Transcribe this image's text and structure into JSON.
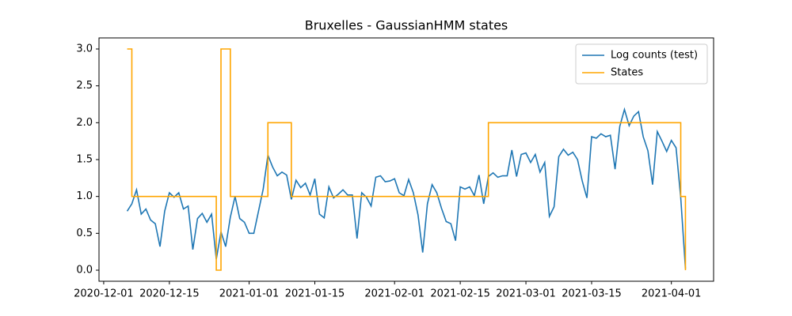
{
  "chart_data": {
    "type": "line",
    "title": "Bruxelles - GaussianHMM states",
    "x": [
      "2020-12-06",
      "2020-12-07",
      "2020-12-08",
      "2020-12-09",
      "2020-12-10",
      "2020-12-11",
      "2020-12-12",
      "2020-12-13",
      "2020-12-14",
      "2020-12-15",
      "2020-12-16",
      "2020-12-17",
      "2020-12-18",
      "2020-12-19",
      "2020-12-20",
      "2020-12-21",
      "2020-12-22",
      "2020-12-23",
      "2020-12-24",
      "2020-12-25",
      "2020-12-26",
      "2020-12-27",
      "2020-12-28",
      "2020-12-29",
      "2020-12-30",
      "2020-12-31",
      "2021-01-01",
      "2021-01-02",
      "2021-01-03",
      "2021-01-04",
      "2021-01-05",
      "2021-01-06",
      "2021-01-07",
      "2021-01-08",
      "2021-01-09",
      "2021-01-10",
      "2021-01-11",
      "2021-01-12",
      "2021-01-13",
      "2021-01-14",
      "2021-01-15",
      "2021-01-16",
      "2021-01-17",
      "2021-01-18",
      "2021-01-19",
      "2021-01-20",
      "2021-01-21",
      "2021-01-22",
      "2021-01-23",
      "2021-01-24",
      "2021-01-25",
      "2021-01-26",
      "2021-01-27",
      "2021-01-28",
      "2021-01-29",
      "2021-01-30",
      "2021-01-31",
      "2021-02-01",
      "2021-02-02",
      "2021-02-03",
      "2021-02-04",
      "2021-02-05",
      "2021-02-06",
      "2021-02-07",
      "2021-02-08",
      "2021-02-09",
      "2021-02-10",
      "2021-02-11",
      "2021-02-12",
      "2021-02-13",
      "2021-02-14",
      "2021-02-15",
      "2021-02-16",
      "2021-02-17",
      "2021-02-18",
      "2021-02-19",
      "2021-02-20",
      "2021-02-21",
      "2021-02-22",
      "2021-02-23",
      "2021-02-24",
      "2021-02-25",
      "2021-02-26",
      "2021-02-27",
      "2021-02-28",
      "2021-03-01",
      "2021-03-02",
      "2021-03-03",
      "2021-03-04",
      "2021-03-05",
      "2021-03-06",
      "2021-03-07",
      "2021-03-08",
      "2021-03-09",
      "2021-03-10",
      "2021-03-11",
      "2021-03-12",
      "2021-03-13",
      "2021-03-14",
      "2021-03-15",
      "2021-03-16",
      "2021-03-17",
      "2021-03-18",
      "2021-03-19",
      "2021-03-20",
      "2021-03-21",
      "2021-03-22",
      "2021-03-23",
      "2021-03-24",
      "2021-03-25",
      "2021-03-26",
      "2021-03-27",
      "2021-03-28",
      "2021-03-29",
      "2021-03-30",
      "2021-03-31",
      "2021-04-01",
      "2021-04-02",
      "2021-04-03",
      "2021-04-04"
    ],
    "series": [
      {
        "name": "Log counts (test)",
        "color": "#1f77b4",
        "values": [
          0.8,
          0.9,
          1.09,
          0.76,
          0.83,
          0.68,
          0.63,
          0.32,
          0.8,
          1.05,
          0.99,
          1.05,
          0.83,
          0.87,
          0.28,
          0.7,
          0.77,
          0.65,
          0.76,
          0.15,
          0.52,
          0.32,
          0.72,
          1.0,
          0.7,
          0.65,
          0.5,
          0.5,
          0.8,
          1.1,
          1.56,
          1.4,
          1.28,
          1.33,
          1.29,
          0.96,
          1.22,
          1.12,
          1.18,
          1.02,
          1.24,
          0.76,
          0.71,
          1.13,
          0.98,
          1.03,
          1.09,
          1.02,
          1.02,
          0.43,
          1.05,
          0.99,
          0.87,
          1.26,
          1.28,
          1.2,
          1.21,
          1.24,
          1.05,
          1.01,
          1.23,
          1.05,
          0.75,
          0.24,
          0.9,
          1.16,
          1.05,
          0.84,
          0.66,
          0.63,
          0.4,
          1.13,
          1.1,
          1.13,
          1.01,
          1.29,
          0.9,
          1.27,
          1.32,
          1.26,
          1.28,
          1.28,
          1.63,
          1.27,
          1.57,
          1.59,
          1.46,
          1.57,
          1.33,
          1.46,
          0.73,
          0.86,
          1.54,
          1.64,
          1.56,
          1.6,
          1.5,
          1.21,
          0.98,
          1.81,
          1.79,
          1.85,
          1.81,
          1.83,
          1.37,
          1.95,
          2.18,
          1.96,
          2.09,
          2.15,
          1.81,
          1.62,
          1.16,
          1.88,
          1.75,
          1.61,
          1.76,
          1.66,
          0.98,
          0.02
        ]
      },
      {
        "name": "States",
        "color": "#ffa500",
        "step": true,
        "values": [
          3,
          1,
          1,
          1,
          1,
          1,
          1,
          1,
          1,
          1,
          1,
          1,
          1,
          1,
          1,
          1,
          1,
          1,
          1,
          0,
          3,
          3,
          1,
          1,
          1,
          1,
          1,
          1,
          1,
          1,
          2,
          2,
          2,
          2,
          2,
          1,
          1,
          1,
          1,
          1,
          1,
          1,
          1,
          1,
          1,
          1,
          1,
          1,
          1,
          1,
          1,
          1,
          1,
          1,
          1,
          1,
          1,
          1,
          1,
          1,
          1,
          1,
          1,
          1,
          1,
          1,
          1,
          1,
          1,
          1,
          1,
          1,
          1,
          1,
          1,
          1,
          1,
          2,
          2,
          2,
          2,
          2,
          2,
          2,
          2,
          2,
          2,
          2,
          2,
          2,
          2,
          2,
          2,
          2,
          2,
          2,
          2,
          2,
          2,
          2,
          2,
          2,
          2,
          2,
          2,
          2,
          2,
          2,
          2,
          2,
          2,
          2,
          2,
          2,
          2,
          2,
          2,
          2,
          1,
          0
        ]
      }
    ],
    "xlim": [
      "2020-11-30",
      "2021-04-10"
    ],
    "xticks": [
      "2020-12-01",
      "2020-12-15",
      "2021-01-01",
      "2021-01-15",
      "2021-02-01",
      "2021-02-15",
      "2021-03-01",
      "2021-03-15",
      "2021-04-01"
    ],
    "ylim": [
      -0.15,
      3.15
    ],
    "yticks": [
      {
        "value": 0,
        "label": "0.0"
      },
      {
        "value": 0.5,
        "label": "0.5"
      },
      {
        "value": 1,
        "label": "1.0"
      },
      {
        "value": 1.5,
        "label": "1.5"
      },
      {
        "value": 2,
        "label": "2.0"
      },
      {
        "value": 2.5,
        "label": "2.5"
      },
      {
        "value": 3,
        "label": "3.0"
      }
    ],
    "legend": "upper right"
  }
}
